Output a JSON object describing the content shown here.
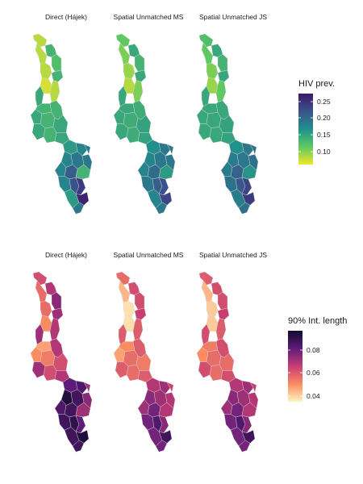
{
  "top_row": {
    "panels": [
      "Direct (Hájek)",
      "Spatial Unmatched MS",
      "Spatial Unmatched JS"
    ],
    "legend": {
      "title": "HIV prev.",
      "ticks": [
        "0.25",
        "0.20",
        "0.15",
        "0.10"
      ],
      "scale": "viridis"
    }
  },
  "bottom_row": {
    "panels": [
      "Direct (Hájek)",
      "Spatial Unmatched MS",
      "Spatial Unmatched JS"
    ],
    "legend": {
      "title": "90% Int. length",
      "ticks": [
        "0.08",
        "0.06",
        "0.04"
      ],
      "scale": "magma"
    }
  },
  "colors": {
    "viridis_high": "#3d1868",
    "viridis_mid": "#21908c",
    "viridis_low": "#f1e628",
    "magma_high": "#120a2d",
    "magma_mid": "#c83e73",
    "magma_low": "#fdf5c0"
  }
}
